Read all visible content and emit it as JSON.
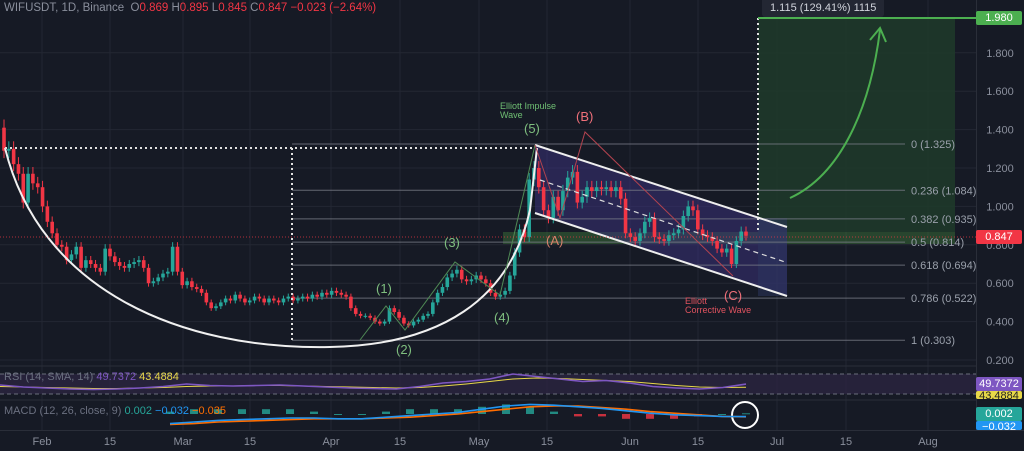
{
  "header": {
    "symbol": "WIFUSDT",
    "interval": "1D",
    "exchange": "Binance",
    "open_label": "O",
    "open": "0.869",
    "high_label": "H",
    "high": "0.895",
    "low_label": "L",
    "low": "0.845",
    "close_label": "C",
    "close": "0.847",
    "change": "−0.023 (−2.64%)"
  },
  "colors": {
    "up": "#26a69a",
    "down": "#f23645",
    "background": "#161a25",
    "rsi": "#7e57c2",
    "rsi_sma": "#e8d848",
    "macd": "#2196f3",
    "signal": "#ff6d00",
    "target": "#4caf50"
  },
  "chart_data": {
    "type": "candlestick",
    "ylim": [
      0.2,
      1.98
    ],
    "y_ticks": [
      "1.800",
      "1.600",
      "1.400",
      "1.200",
      "1.000",
      "0.800",
      "0.600",
      "0.400",
      "0.200"
    ],
    "x_ticks": [
      "Feb",
      "15",
      "Mar",
      "15",
      "Apr",
      "15",
      "May",
      "15",
      "Jun",
      "15",
      "Jul",
      "15",
      "Aug"
    ],
    "first_open": 1.41,
    "closes": [
      1.29,
      1.3,
      1.22,
      1.17,
      1.02,
      1.17,
      1.12,
      1.1,
      1.0,
      0.92,
      0.86,
      0.8,
      0.79,
      0.72,
      0.75,
      0.79,
      0.68,
      0.72,
      0.7,
      0.68,
      0.66,
      0.78,
      0.74,
      0.71,
      0.69,
      0.68,
      0.7,
      0.71,
      0.72,
      0.68,
      0.6,
      0.61,
      0.63,
      0.65,
      0.66,
      0.79,
      0.66,
      0.59,
      0.61,
      0.58,
      0.57,
      0.55,
      0.5,
      0.47,
      0.48,
      0.5,
      0.52,
      0.51,
      0.54,
      0.52,
      0.5,
      0.51,
      0.53,
      0.52,
      0.5,
      0.52,
      0.51,
      0.5,
      0.52,
      0.53,
      0.51,
      0.52,
      0.53,
      0.52,
      0.54,
      0.53,
      0.55,
      0.54,
      0.56,
      0.55,
      0.54,
      0.53,
      0.47,
      0.44,
      0.43,
      0.43,
      0.42,
      0.4,
      0.39,
      0.4,
      0.47,
      0.45,
      0.42,
      0.39,
      0.38,
      0.4,
      0.41,
      0.43,
      0.44,
      0.5,
      0.55,
      0.58,
      0.63,
      0.65,
      0.67,
      0.62,
      0.61,
      0.62,
      0.64,
      0.62,
      0.6,
      0.55,
      0.53,
      0.54,
      0.56,
      0.64,
      0.76,
      0.88,
      0.84,
      1.14,
      1.2,
      1.1,
      0.98,
      0.94,
      1.05,
      0.98,
      1.08,
      1.15,
      1.18,
      1.02,
      1.05,
      1.1,
      1.08,
      1.1,
      1.09,
      1.1,
      1.08,
      1.1,
      1.04,
      0.86,
      0.84,
      0.82,
      0.86,
      0.92,
      0.94,
      0.84,
      0.83,
      0.82,
      0.85,
      0.86,
      0.88,
      0.95,
      1.0,
      0.98,
      0.88,
      0.85,
      0.84,
      0.82,
      0.78,
      0.76,
      0.78,
      0.7,
      0.82,
      0.869,
      0.847
    ],
    "last_price": "0.847",
    "fibonacci": [
      {
        "label": "0 (1.325)",
        "price": 1.325
      },
      {
        "label": "0.236 (1.084)",
        "price": 1.084
      },
      {
        "label": "0.382 (0.935)",
        "price": 0.935
      },
      {
        "label": "0.5 (0.814)",
        "price": 0.814
      },
      {
        "label": "0.618 (0.694)",
        "price": 0.694
      },
      {
        "label": "0.786 (0.522)",
        "price": 0.522
      },
      {
        "label": "1 (0.303)",
        "price": 0.303
      }
    ],
    "target": {
      "price_label": "1.980",
      "price": 1.98,
      "measure": "1.115 (129.41%) 1115"
    },
    "annotations": {
      "impulse_title": "Elliott Impulse\nWave",
      "impulse_waves": [
        "(1)",
        "(2)",
        "(3)",
        "(4)",
        "(5)"
      ],
      "corrective_title": "Elliott\nCorrective Wave",
      "corrective_waves": [
        "(A)",
        "(B)",
        "(C)"
      ]
    },
    "rsi": {
      "label": "RSI (14, SMA, 14)",
      "value": "49.7372",
      "sma_value": "43.4884",
      "values": [
        48,
        44,
        42,
        40,
        39,
        40,
        42,
        45,
        50,
        47,
        46,
        47,
        48,
        46,
        44,
        42,
        41,
        40,
        45,
        52,
        55,
        60,
        70,
        65,
        60,
        55,
        57,
        52,
        45,
        42,
        40,
        43,
        49.7
      ],
      "sma": [
        45,
        44,
        43,
        42,
        41,
        41,
        42,
        43,
        45,
        46,
        46,
        47,
        47,
        46,
        45,
        44,
        43,
        42,
        43,
        46,
        50,
        55,
        60,
        62,
        61,
        59,
        57,
        55,
        51,
        47,
        44,
        43,
        43.5
      ]
    },
    "macd": {
      "label": "MACD (12, 26, close, 9)",
      "histogram_value": "0.002",
      "macd_value": "−0.032",
      "signal_value": "−0.035",
      "macd": [
        -0.12,
        -0.1,
        -0.08,
        -0.07,
        -0.06,
        -0.05,
        -0.05,
        -0.06,
        -0.06,
        -0.04,
        -0.02,
        0.0,
        0.02,
        0.06,
        0.1,
        0.12,
        0.11,
        0.09,
        0.07,
        0.04,
        0.01,
        -0.01,
        -0.02,
        -0.03,
        -0.032
      ],
      "signal": [
        -0.13,
        -0.12,
        -0.1,
        -0.09,
        -0.08,
        -0.07,
        -0.06,
        -0.06,
        -0.06,
        -0.05,
        -0.04,
        -0.02,
        0.0,
        0.03,
        0.06,
        0.09,
        0.1,
        0.1,
        0.08,
        0.06,
        0.03,
        0.01,
        -0.01,
        -0.03,
        -0.035
      ]
    }
  }
}
